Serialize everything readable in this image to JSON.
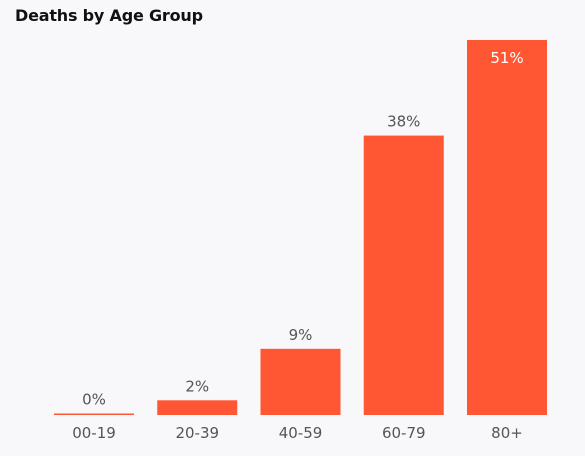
{
  "chart_data": {
    "type": "bar",
    "title": "Deaths by Age Group",
    "categories": [
      "00-19",
      "20-39",
      "40-59",
      "60-79",
      "80+"
    ],
    "values": [
      0.1,
      2,
      9,
      38,
      51
    ],
    "data_labels": [
      "0%",
      "2%",
      "9%",
      "38%",
      "51%"
    ],
    "bar_color": "#ff5733",
    "ylim": [
      0,
      51
    ],
    "grid": false,
    "legend": "none"
  }
}
